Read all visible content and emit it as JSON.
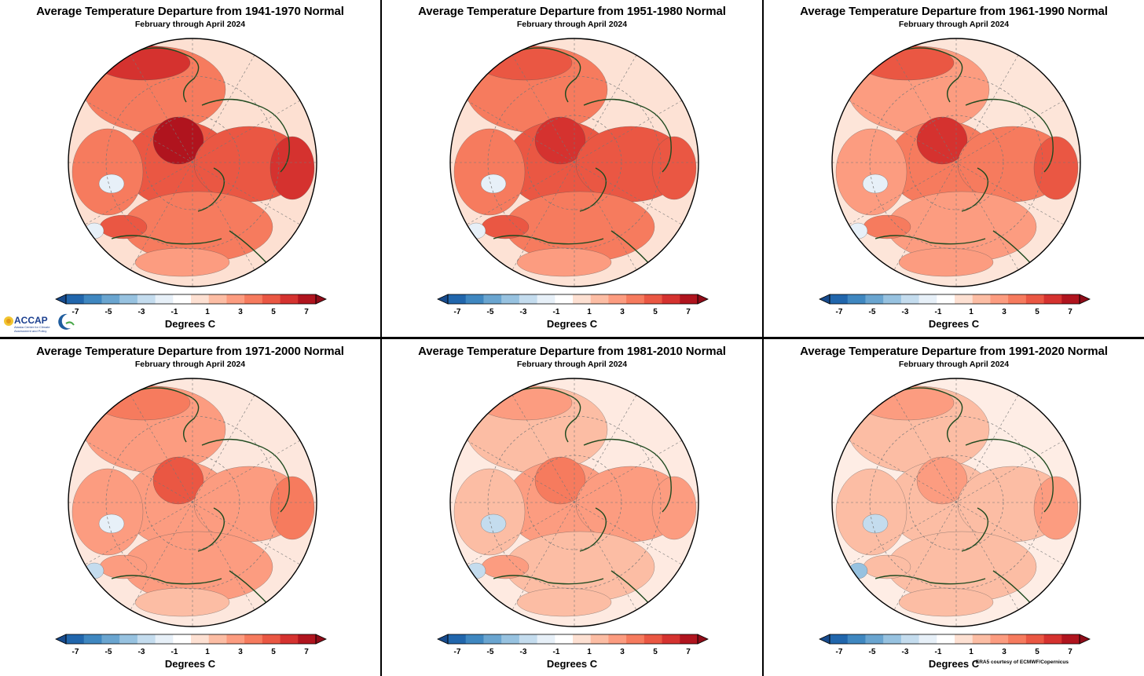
{
  "figure": {
    "subtitle": "February through April 2024",
    "colorbar": {
      "units_label": "Degrees C",
      "tick_labels": [
        "-7",
        "-5",
        "-3",
        "-1",
        "1",
        "3",
        "5",
        "7"
      ],
      "colors": [
        "#2166ac",
        "#3f87c0",
        "#6aa5d0",
        "#97c2e0",
        "#c4dcee",
        "#e7f0f8",
        "#ffffff",
        "#fde0d2",
        "#fcbda4",
        "#fc9c80",
        "#f67b5e",
        "#ea5743",
        "#d5322f",
        "#b0141e"
      ]
    },
    "logo": {
      "name": "ACCAP",
      "tagline": "Alaska Center for Climate Assessment and Policy",
      "icon": "accap-logo-icon"
    },
    "credit": "ERA5 courtesy of ECMWF/Copernicus"
  },
  "panels": [
    {
      "title": "Average Temperature Departure from 1941-1970 Normal",
      "intensity": 1.0
    },
    {
      "title": "Average Temperature Departure from 1951-1980 Normal",
      "intensity": 0.88
    },
    {
      "title": "Average Temperature Departure from 1961-1990 Normal",
      "intensity": 0.75
    },
    {
      "title": "Average Temperature Departure from 1971-2000 Normal",
      "intensity": 0.6
    },
    {
      "title": "Average Temperature Departure from 1981-2010 Normal",
      "intensity": 0.45
    },
    {
      "title": "Average Temperature Departure from 1991-2020 Normal",
      "intensity": 0.3
    }
  ]
}
